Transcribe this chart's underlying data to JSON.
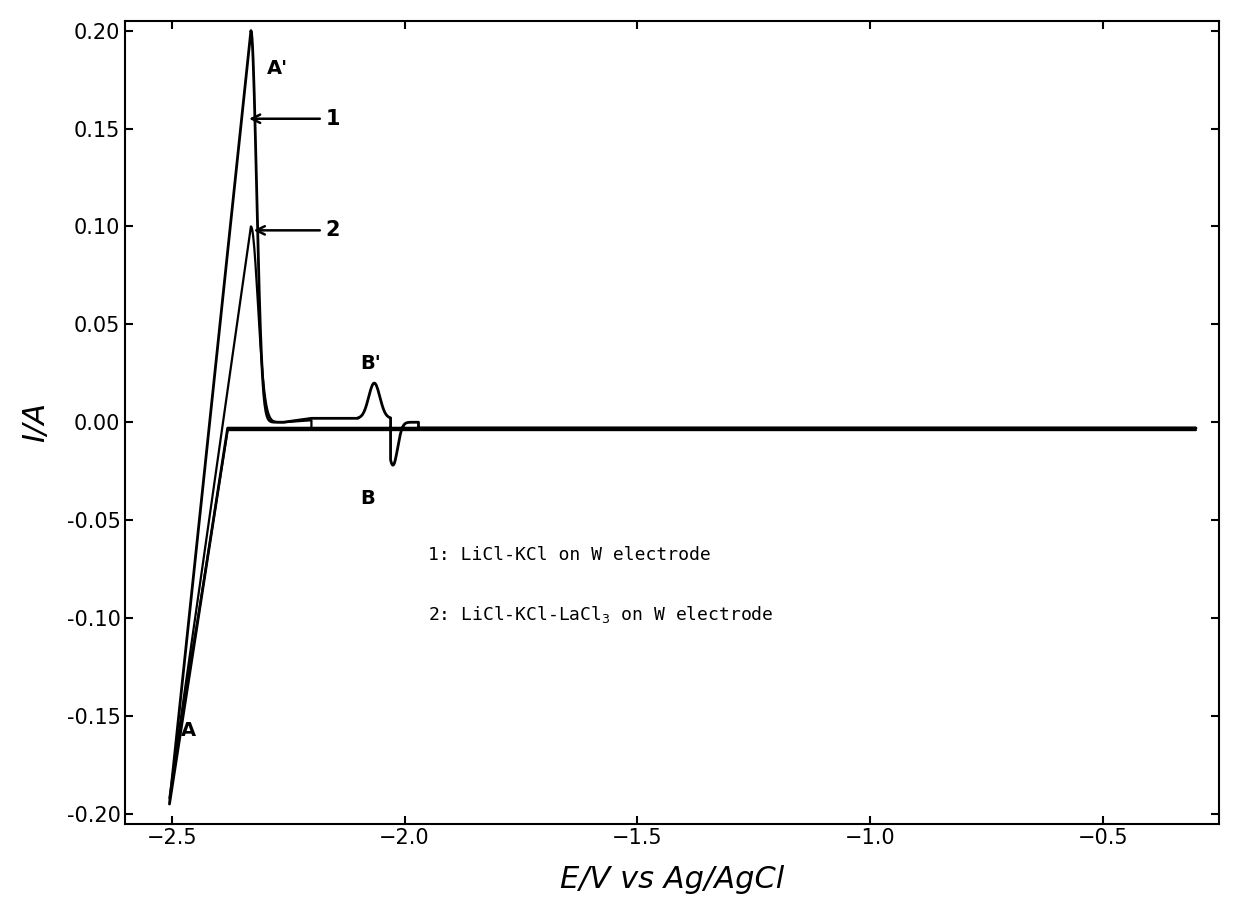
{
  "xlabel": "E/V vs Ag/AgCl",
  "ylabel": "I/A",
  "xlim": [
    -2.6,
    -0.25
  ],
  "ylim": [
    -0.205,
    0.205
  ],
  "xticks": [
    -2.5,
    -2.0,
    -1.5,
    -1.0,
    -0.5
  ],
  "yticks": [
    -0.2,
    -0.15,
    -0.1,
    -0.05,
    0.0,
    0.05,
    0.1,
    0.15,
    0.2
  ],
  "bg_color": "#ffffff",
  "line_color": "#000000"
}
